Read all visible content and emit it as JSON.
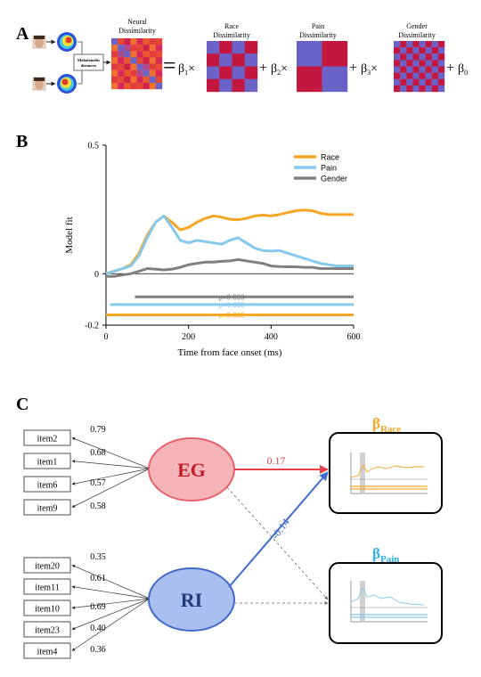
{
  "panel_a": {
    "label": "A",
    "mahal_box": [
      "Mahalanobis",
      "distances"
    ],
    "matrices": [
      {
        "title": [
          "Neural",
          "Dissimilarity"
        ]
      },
      {
        "title": [
          "Race",
          "Dissimilarity"
        ]
      },
      {
        "title": [
          "Pain",
          "Dissimilarity"
        ]
      },
      {
        "title": [
          "Gender",
          "Dissimilarity"
        ]
      }
    ],
    "equals": "=",
    "terms": [
      {
        "beta": "β",
        "sub": "1",
        "op": "×"
      },
      {
        "plus": "+",
        "beta": "β",
        "sub": "2",
        "op": "×"
      },
      {
        "plus": "+",
        "beta": "β",
        "sub": "3",
        "op": "×"
      },
      {
        "plus": "+",
        "beta": "β",
        "sub": "0",
        "op": ""
      }
    ],
    "colors": {
      "red": "#c4173f",
      "blue": "#6a62c6",
      "orange": "#e8622a"
    }
  },
  "panel_b": {
    "label": "B",
    "chart_data": {
      "type": "line",
      "xlabel": "Time from face onset (ms)",
      "ylabel": "Model fit",
      "xlim": [
        0,
        600
      ],
      "ylim": [
        -0.2,
        0.5
      ],
      "xticks": [
        "0",
        "200",
        "400",
        "600"
      ],
      "yticks": [
        "0.5",
        "0",
        "-0.2"
      ],
      "legend_position": "top-right",
      "series": [
        {
          "name": "Race",
          "color": "#f5a623",
          "x": [
            0,
            20,
            40,
            60,
            80,
            100,
            120,
            140,
            160,
            180,
            200,
            220,
            240,
            260,
            280,
            300,
            320,
            340,
            360,
            380,
            400,
            420,
            440,
            460,
            480,
            500,
            520,
            540,
            560,
            580,
            600
          ],
          "y": [
            0.0,
            0.01,
            0.02,
            0.035,
            0.08,
            0.15,
            0.2,
            0.225,
            0.2,
            0.17,
            0.18,
            0.2,
            0.215,
            0.225,
            0.22,
            0.212,
            0.21,
            0.215,
            0.225,
            0.228,
            0.225,
            0.23,
            0.238,
            0.245,
            0.248,
            0.245,
            0.235,
            0.23,
            0.23,
            0.23,
            0.23
          ]
        },
        {
          "name": "Pain",
          "color": "#87c9ee",
          "x": [
            0,
            20,
            40,
            60,
            80,
            100,
            120,
            140,
            160,
            180,
            200,
            220,
            240,
            260,
            280,
            300,
            320,
            340,
            360,
            380,
            400,
            420,
            440,
            460,
            480,
            500,
            520,
            540,
            560,
            580,
            600
          ],
          "y": [
            0.0,
            0.01,
            0.02,
            0.03,
            0.07,
            0.14,
            0.2,
            0.225,
            0.18,
            0.13,
            0.12,
            0.13,
            0.125,
            0.12,
            0.115,
            0.13,
            0.14,
            0.12,
            0.1,
            0.09,
            0.088,
            0.09,
            0.08,
            0.07,
            0.06,
            0.05,
            0.04,
            0.035,
            0.03,
            0.03,
            0.03
          ]
        },
        {
          "name": "Gender",
          "color": "#808080",
          "x": [
            0,
            20,
            40,
            60,
            80,
            100,
            120,
            140,
            160,
            180,
            200,
            220,
            240,
            260,
            280,
            300,
            320,
            340,
            360,
            380,
            400,
            420,
            440,
            460,
            480,
            500,
            520,
            540,
            560,
            580,
            600
          ],
          "y": [
            -0.01,
            -0.01,
            -0.005,
            0.0,
            0.01,
            0.02,
            0.018,
            0.015,
            0.018,
            0.025,
            0.035,
            0.04,
            0.045,
            0.045,
            0.048,
            0.05,
            0.055,
            0.05,
            0.045,
            0.04,
            0.03,
            0.028,
            0.027,
            0.027,
            0.025,
            0.025,
            0.02,
            0.02,
            0.02,
            0.02,
            0.02
          ]
        }
      ],
      "significance_bars": [
        {
          "series": "Gender",
          "label": "p=0.000",
          "x": [
            70,
            600
          ],
          "y": -0.09
        },
        {
          "series": "Pain",
          "label": "p=0.000",
          "x": [
            10,
            600
          ],
          "y": -0.12
        },
        {
          "series": "Race",
          "label": "p=0.000",
          "x": [
            0,
            600
          ],
          "y": -0.16
        }
      ]
    }
  },
  "panel_c": {
    "label": "C",
    "items_eg": [
      "item2",
      "item1",
      "item6",
      "item9"
    ],
    "loadings_eg": [
      "0.79",
      "0.68",
      "0.57",
      "0.58"
    ],
    "items_ri": [
      "item20",
      "item11",
      "item10",
      "item23",
      "item4"
    ],
    "loadings_ri": [
      "0.35",
      "0.61",
      "0.69",
      "0.40",
      "0.36"
    ],
    "eg": {
      "label": "EG",
      "fill": "#f5b5b8",
      "stroke": "#e8616b",
      "text": "#c41a2a"
    },
    "ri": {
      "label": "RI",
      "fill": "#a9bff0",
      "stroke": "#4169c9",
      "text": "#1f3a7a"
    },
    "paths": [
      {
        "from": "EG",
        "to": "β_Race",
        "value": "0.17",
        "color": "#e8414b"
      },
      {
        "from": "RI",
        "to": "β_Race",
        "value": "-0.14",
        "color": "#3f6bcf"
      }
    ],
    "beta_race": {
      "beta": "β",
      "sub": "Race",
      "color": "#f5a623"
    },
    "beta_pain": {
      "beta": "β",
      "sub": "Pain",
      "color": "#2fb0e6"
    }
  }
}
